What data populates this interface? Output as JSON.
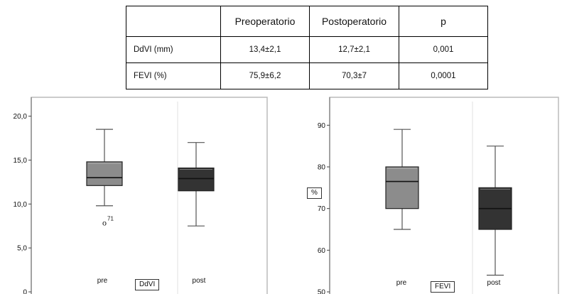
{
  "table": {
    "headers": [
      "",
      "Preoperatorio",
      "Postoperatorio",
      "p"
    ],
    "rows": [
      [
        "DdVI (mm)",
        "13,4±2,1",
        "12,7±2,1",
        "0,001"
      ],
      [
        "FEVI (%)",
        "75,9±6,2",
        "70,3±7",
        "0,0001"
      ]
    ]
  },
  "colors": {
    "pre_box": "#8c8c8c",
    "post_box": "#333333",
    "whisker": "#555555",
    "frame": "#bbbbbb"
  },
  "chart_data": [
    {
      "type": "box",
      "variable_label": "DdVI",
      "categories": [
        "pre",
        "post"
      ],
      "ylim": [
        0,
        21.5
      ],
      "yticks": [
        0,
        5,
        10,
        15,
        20
      ],
      "ytick_labels": [
        "0",
        "5,0",
        "10,0",
        "15,0",
        "20,0"
      ],
      "boxes": [
        {
          "name": "pre",
          "whisker_low": 9.8,
          "q1": 12.1,
          "median": 13.0,
          "q3": 14.8,
          "whisker_high": 18.5
        },
        {
          "name": "post",
          "whisker_low": 7.5,
          "q1": 11.5,
          "median": 12.9,
          "q3": 14.1,
          "whisker_high": 17.0
        }
      ],
      "outliers": [
        {
          "category": "pre",
          "value": 7.9,
          "marker": "o",
          "label": "71"
        }
      ]
    },
    {
      "type": "box",
      "variable_label": "FEVI",
      "axis_unit_label": "%",
      "categories": [
        "pre",
        "post"
      ],
      "ylim": [
        50,
        95
      ],
      "yticks": [
        50,
        60,
        70,
        80,
        90
      ],
      "ytick_labels": [
        "50",
        "60",
        "70",
        "80",
        "90"
      ],
      "boxes": [
        {
          "name": "pre",
          "whisker_low": 65,
          "q1": 70,
          "median": 76.5,
          "q3": 80,
          "whisker_high": 89
        },
        {
          "name": "post",
          "whisker_low": 54,
          "q1": 65,
          "median": 70,
          "q3": 75,
          "whisker_high": 85
        }
      ],
      "outliers": []
    }
  ]
}
